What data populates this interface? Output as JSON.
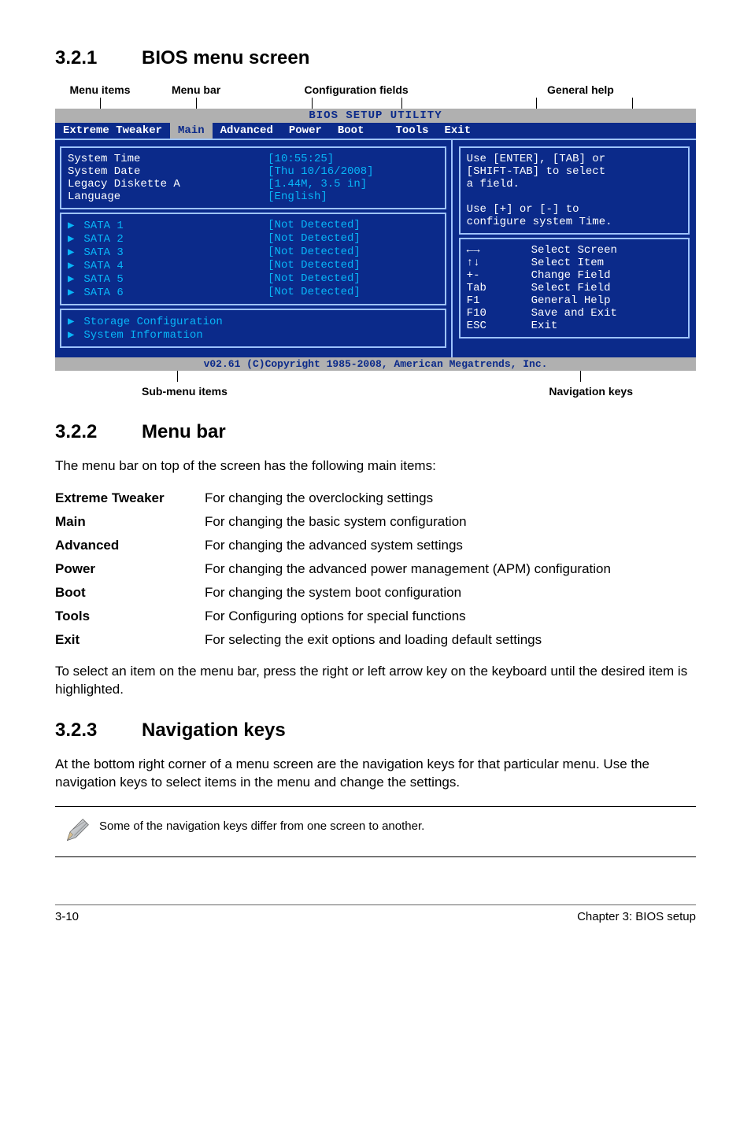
{
  "sections": {
    "s321": {
      "num": "3.2.1",
      "title": "BIOS menu screen"
    },
    "s322": {
      "num": "3.2.2",
      "title": "Menu bar"
    },
    "s323": {
      "num": "3.2.3",
      "title": "Navigation keys"
    }
  },
  "top_labels": {
    "menu_items": "Menu items",
    "menu_bar": "Menu bar",
    "config_fields": "Configuration fields",
    "general_help": "General help"
  },
  "bios": {
    "title": "BIOS SETUP UTILITY",
    "tabs": [
      "Extreme Tweaker",
      "Main",
      "Advanced",
      "Power",
      "Boot",
      "Tools",
      "Exit"
    ],
    "active_tab_index": 1,
    "left_group1": [
      {
        "k": "System Time",
        "v": "[10:55:25]"
      },
      {
        "k": "System Date",
        "v": "[Thu 10/16/2008]"
      },
      {
        "k": "Legacy Diskette A",
        "v": "[1.44M, 3.5 in]"
      },
      {
        "k": "Language",
        "v": "[English]"
      }
    ],
    "left_group2": [
      {
        "k": "SATA 1",
        "v": "[Not Detected]"
      },
      {
        "k": "SATA 2",
        "v": "[Not Detected]"
      },
      {
        "k": "SATA 3",
        "v": "[Not Detected]"
      },
      {
        "k": "SATA 4",
        "v": "[Not Detected]"
      },
      {
        "k": "SATA 5",
        "v": "[Not Detected]"
      },
      {
        "k": "SATA 6",
        "v": "[Not Detected]"
      }
    ],
    "left_group3": [
      {
        "k": "Storage Configuration",
        "v": ""
      },
      {
        "k": "System Information",
        "v": ""
      }
    ],
    "help_text_lines": [
      "Use [ENTER], [TAB] or",
      "[SHIFT-TAB] to select",
      "a field.",
      "",
      "Use [+] or [-] to",
      "configure system Time."
    ],
    "nav_keys": [
      {
        "sym": "←→",
        "txt": "Select Screen"
      },
      {
        "sym": "↑↓",
        "txt": "Select Item"
      },
      {
        "sym": "+-",
        "txt": "Change Field"
      },
      {
        "sym": "Tab",
        "txt": "Select Field"
      },
      {
        "sym": "F1",
        "txt": "General Help"
      },
      {
        "sym": "F10",
        "txt": "Save and Exit"
      },
      {
        "sym": "ESC",
        "txt": "Exit"
      }
    ],
    "footer": "v02.61 (C)Copyright 1985-2008, American Megatrends, Inc."
  },
  "below_labels": {
    "sub": "Sub-menu items",
    "nav": "Navigation keys"
  },
  "s322_intro": "The menu bar on top of the screen has the following main items:",
  "defs": [
    {
      "term": "Extreme Tweaker",
      "desc": "For changing the overclocking settings"
    },
    {
      "term": "Main",
      "desc": "For changing the basic system configuration"
    },
    {
      "term": "Advanced",
      "desc": "For changing the advanced system settings"
    },
    {
      "term": "Power",
      "desc": "For changing the advanced power management (APM) configuration"
    },
    {
      "term": "Boot",
      "desc": "For changing the system boot configuration"
    },
    {
      "term": "Tools",
      "desc": "For Configuring options for special functions"
    },
    {
      "term": "Exit",
      "desc": "For selecting the exit options and loading default settings"
    }
  ],
  "s322_outro": "To select an item on the menu bar, press the right or left arrow key on the keyboard until the desired item is highlighted.",
  "s323_body": "At the bottom right corner of a menu screen are the navigation keys for that particular menu. Use the navigation keys to select items in the menu and change the settings.",
  "note": "Some of the navigation keys differ from one screen to another.",
  "footer": {
    "left": "3-10",
    "right": "Chapter 3: BIOS setup"
  },
  "colors": {
    "bios_bg": "#0b2a8a",
    "bios_grey": "#b0b0b0",
    "bios_cyan": "#08b6f8",
    "bios_border": "#9ec3ff"
  }
}
